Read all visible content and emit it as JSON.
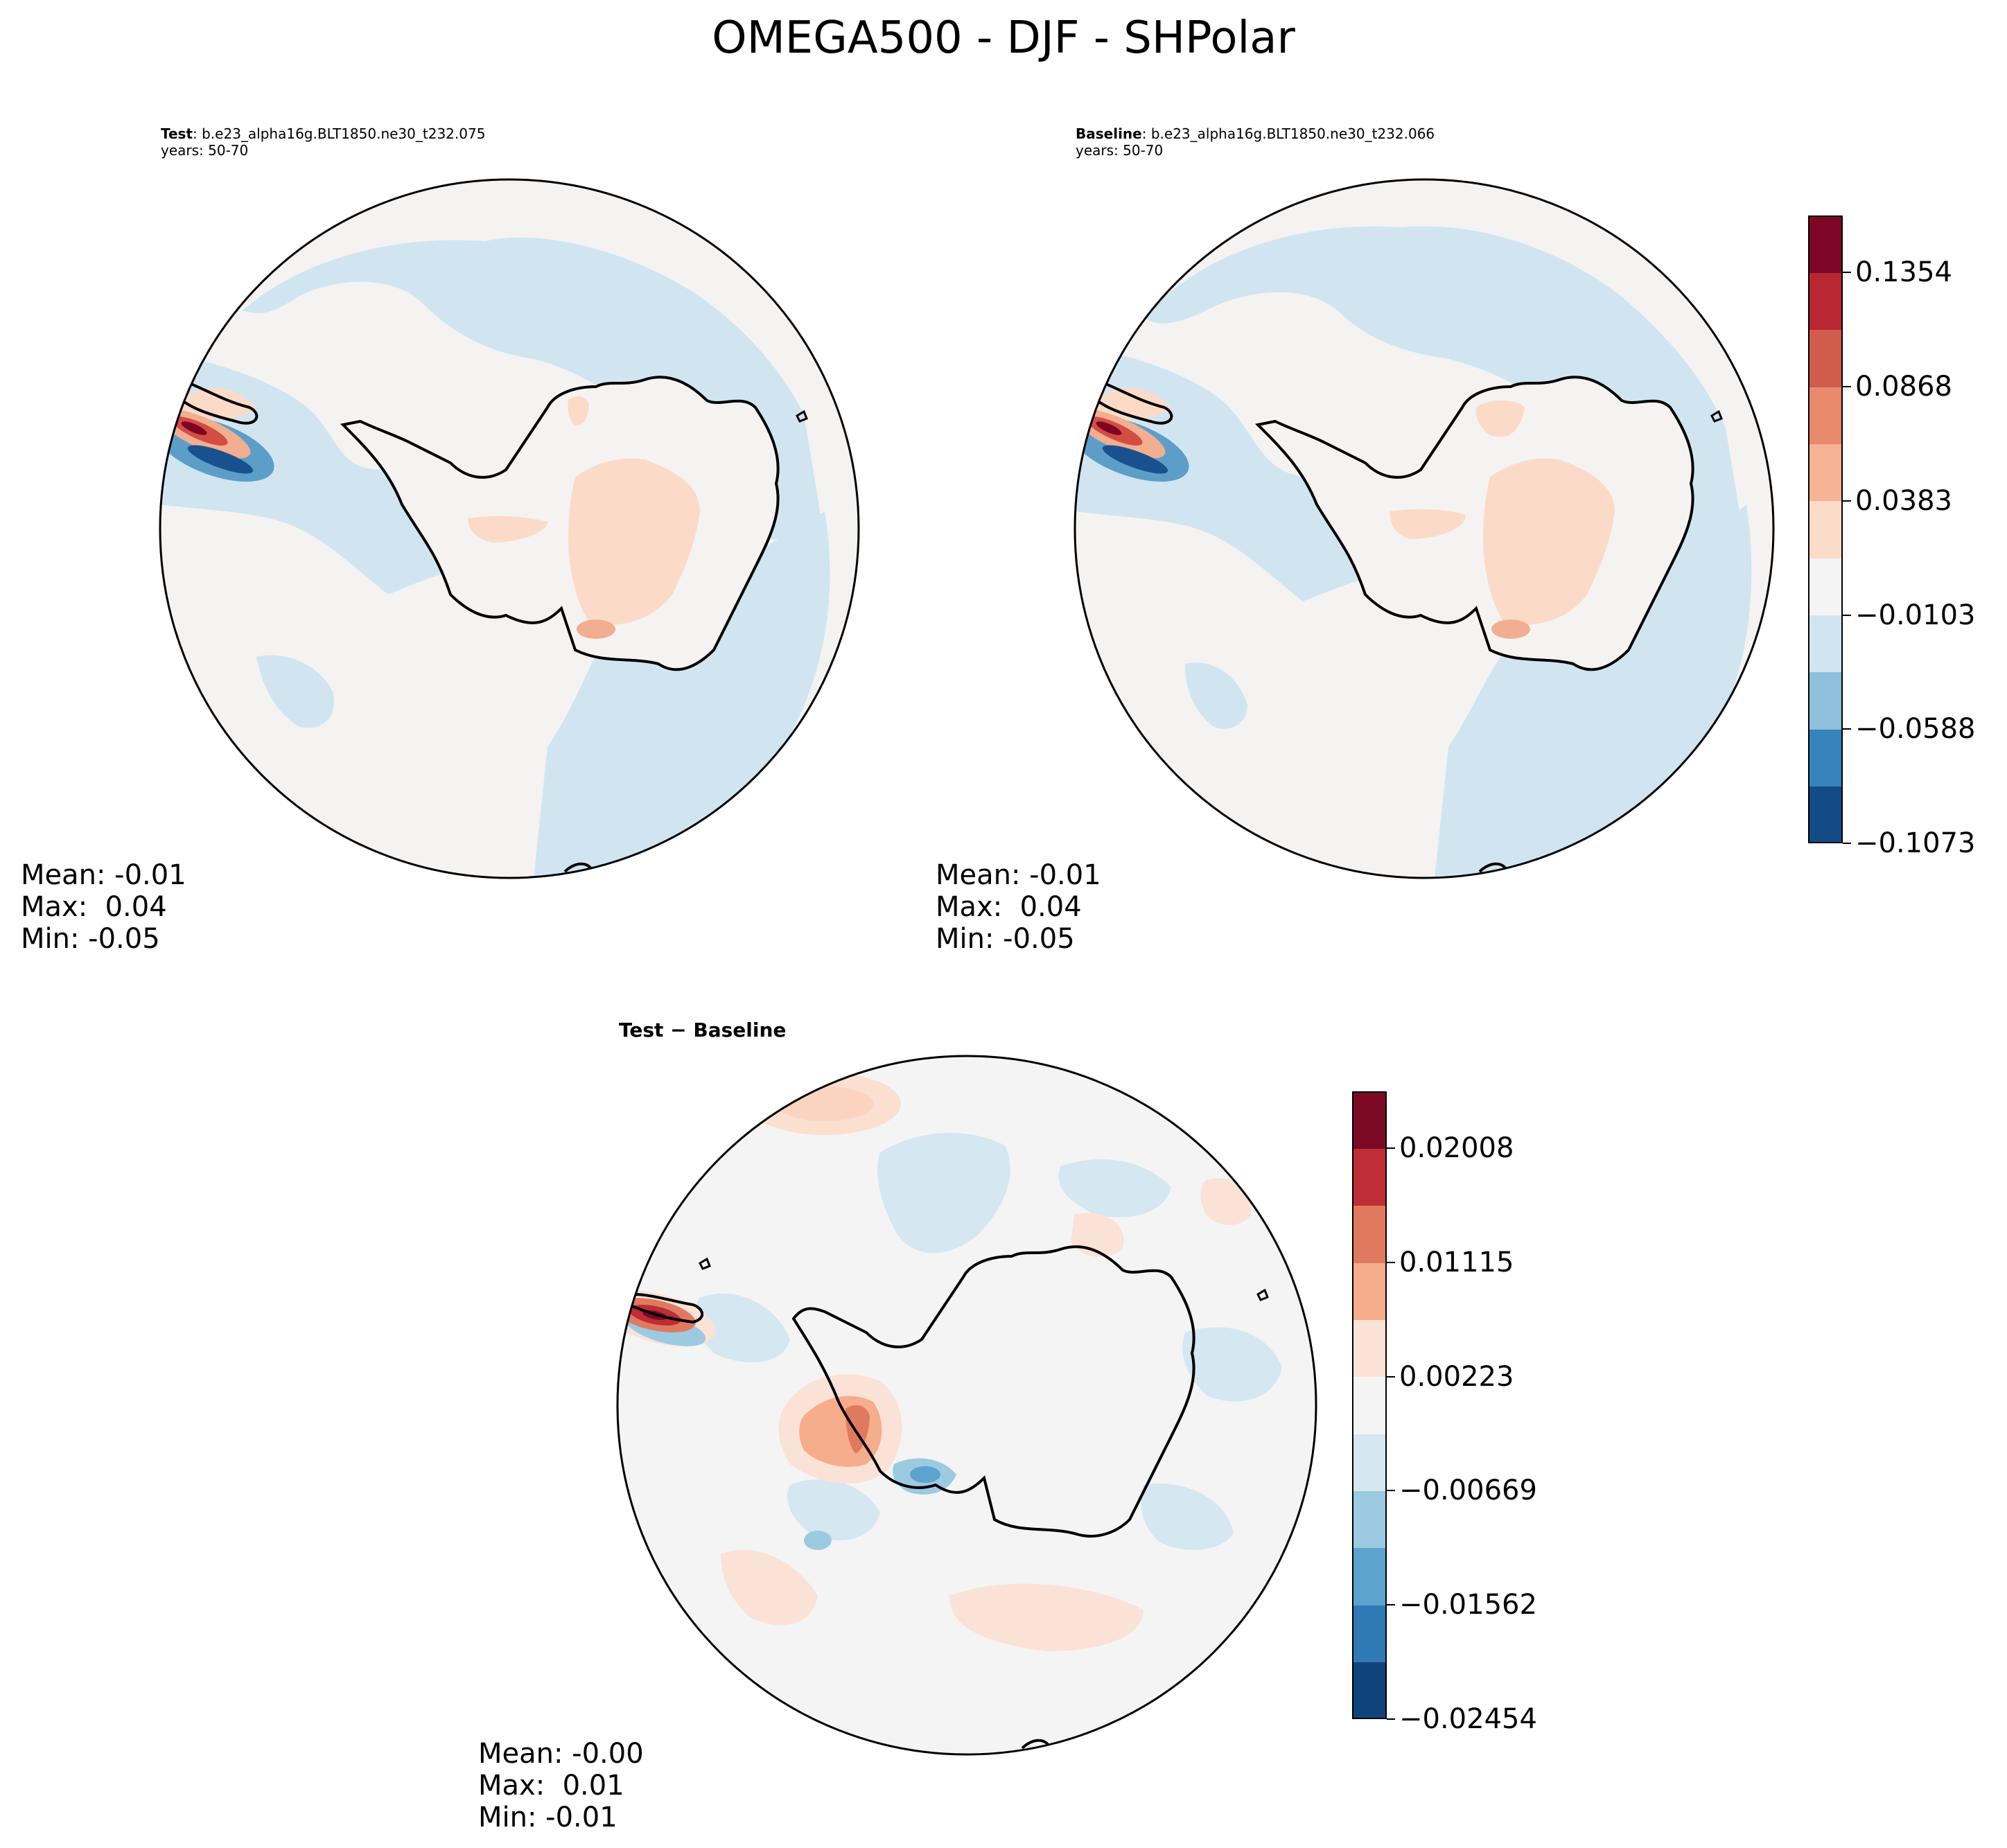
{
  "title": "OMEGA500 - DJF - SHPolar",
  "panels": {
    "test": {
      "label_bold": "Test",
      "label_rest": ": b.e23_alpha16g.BLT1850.ne30_t232.075",
      "years": "years: 50-70",
      "mean": "Mean: -0.01",
      "max": "Max:  0.04",
      "min": "Min: -0.05"
    },
    "baseline": {
      "label_bold": "Baseline",
      "label_rest": ": b.e23_alpha16g.BLT1850.ne30_t232.066",
      "years": "years: 50-70",
      "mean": "Mean: -0.01",
      "max": "Max:  0.04",
      "min": "Min: -0.05"
    },
    "diff": {
      "title": "Test − Baseline",
      "mean": "Mean: -0.00",
      "max": "Max:  0.01",
      "min": "Min: -0.01"
    }
  },
  "colorbars": {
    "main": {
      "tick_labels": [
        "0.1354",
        "0.0868",
        "0.0383",
        "−0.0103",
        "−0.0588",
        "−0.1073"
      ],
      "tick_values": [
        0.1354,
        0.0868,
        0.0383,
        -0.0103,
        -0.0588,
        -0.1073
      ],
      "range": [
        -0.1073,
        0.1597
      ],
      "colors": [
        "#134b87",
        "#3783bb",
        "#8ebfdb",
        "#d1e5f0",
        "#f4f4f4",
        "#fcdcc8",
        "#f6b393",
        "#e8896c",
        "#d05c4c",
        "#b92732",
        "#7d0624"
      ]
    },
    "diff": {
      "tick_labels": [
        "0.02008",
        "0.01115",
        "0.00223",
        "−0.00669",
        "−0.01562",
        "−0.02454"
      ],
      "tick_values": [
        0.02008,
        0.01115,
        0.00223,
        -0.00669,
        -0.01562,
        -0.02454
      ],
      "range": [
        -0.02454,
        0.02454
      ],
      "colors": [
        "#0f437b",
        "#2f79b5",
        "#5ca3cd",
        "#9ccae1",
        "#d5e7f1",
        "#f4f4f4",
        "#fbe2d6",
        "#f5ad8b",
        "#e07a5f",
        "#bf2d36",
        "#7d0a24"
      ]
    }
  },
  "fill_colors": {
    "ocean_neutral": "#f4f3f2",
    "light_blue": "#d1e5f0",
    "light_red": "#fbdbc8",
    "mid_red": "#f2ae90",
    "red": "#d24d43",
    "dark_red": "#7d0624",
    "blue": "#5d9ec9",
    "dark_blue": "#19518e"
  }
}
